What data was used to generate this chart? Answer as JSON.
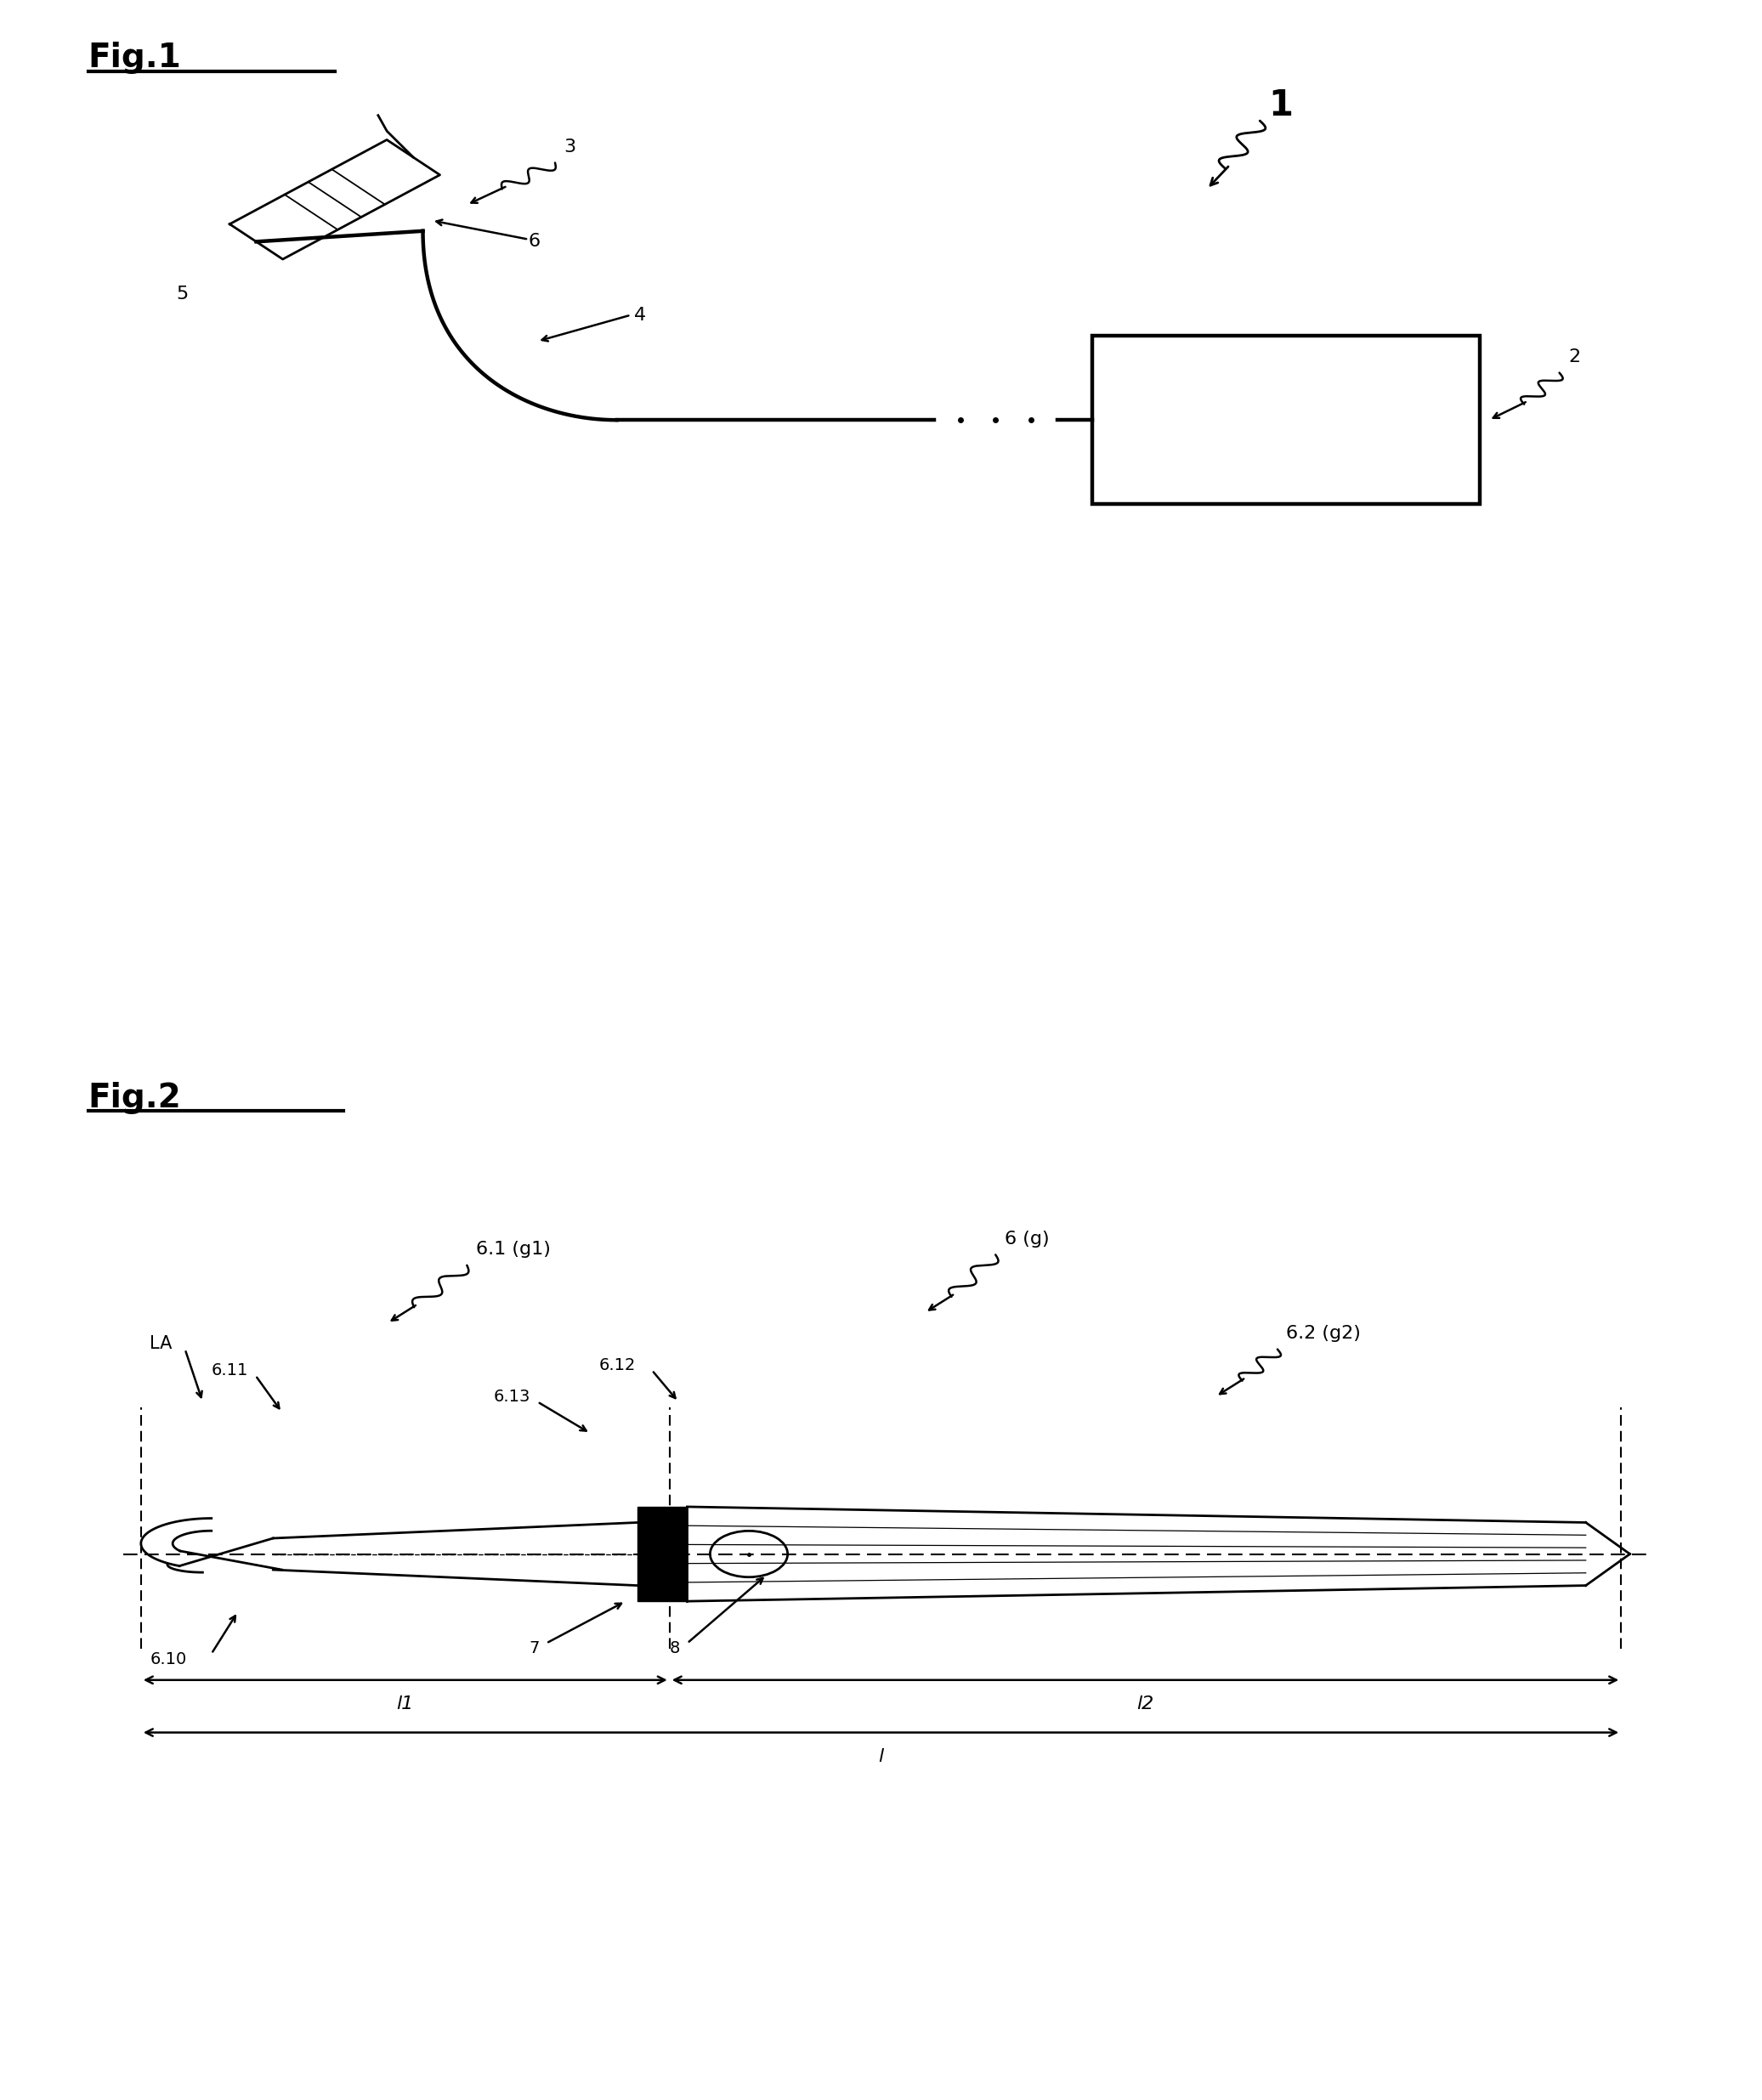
{
  "fig_width": 20.73,
  "fig_height": 24.71,
  "bg_color": "#ffffff",
  "fig1_title": "Fig.1",
  "fig2_title": "Fig.2",
  "label_1": "1",
  "label_2": "2",
  "label_3": "3",
  "label_4": "4",
  "label_5": "5",
  "label_6": "6",
  "label_6g": "6 (g)",
  "label_6_1g1": "6.1 (g1)",
  "label_6_2g2": "6.2 (g2)",
  "label_6_10": "6.10",
  "label_6_11": "6.11",
  "label_6_12": "6.12",
  "label_6_13": "6.13",
  "label_7": "7",
  "label_8": "8",
  "label_LA": "LA",
  "label_l1": "l1",
  "label_l2": "l2",
  "label_l": "l"
}
